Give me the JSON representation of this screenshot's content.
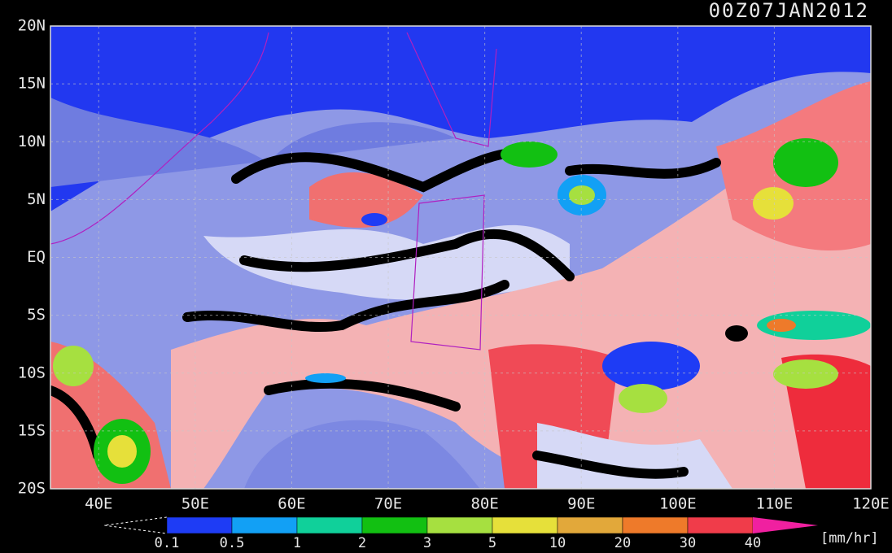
{
  "title": "00Z07JAN2012",
  "lat_labels": [
    "20N",
    "15N",
    "10N",
    "5N",
    "EQ",
    "5S",
    "10S",
    "15S",
    "20S"
  ],
  "lon_labels": [
    "40E",
    "50E",
    "60E",
    "70E",
    "80E",
    "90E",
    "100E",
    "110E",
    "120E"
  ],
  "colorbar": {
    "labels": [
      0.1,
      0.5,
      1,
      2,
      3,
      5,
      10,
      20,
      30,
      40
    ],
    "colors": [
      "#1e3cf5",
      "#12a0f5",
      "#10d09a",
      "#12c012",
      "#a6e040",
      "#e6e03a",
      "#e2a83a",
      "#ee7a2a",
      "#f03c4a"
    ],
    "over_color": "#f020a0",
    "unit": "[mm/hr]"
  }
}
